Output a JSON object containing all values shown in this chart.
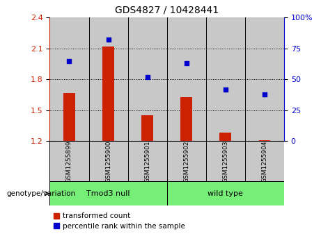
{
  "title": "GDS4827 / 10428441",
  "samples": [
    "GSM1255899",
    "GSM1255900",
    "GSM1255901",
    "GSM1255902",
    "GSM1255903",
    "GSM1255904"
  ],
  "transformed_count": [
    1.67,
    2.12,
    1.45,
    1.63,
    1.28,
    1.21
  ],
  "percentile_rank": [
    65,
    82,
    52,
    63,
    42,
    38
  ],
  "bar_color": "#cc2200",
  "dot_color": "#0000cc",
  "ylim_left": [
    1.2,
    2.4
  ],
  "ylim_right": [
    0,
    100
  ],
  "yticks_left": [
    1.2,
    1.5,
    1.8,
    2.1,
    2.4
  ],
  "yticks_right": [
    0,
    25,
    50,
    75,
    100
  ],
  "ytick_labels_right": [
    "0",
    "25",
    "50",
    "75",
    "100%"
  ],
  "group1_label": "Tmod3 null",
  "group2_label": "wild type",
  "group1_indices": [
    0,
    1,
    2
  ],
  "group2_indices": [
    3,
    4,
    5
  ],
  "group1_color": "#77ee77",
  "group2_color": "#77ee77",
  "genotype_label": "genotype/variation",
  "legend_bar_label": "transformed count",
  "legend_dot_label": "percentile rank within the sample",
  "title_fontsize": 10,
  "tick_fontsize": 8,
  "bar_bottom": 1.2,
  "sample_box_color": "#c8c8c8"
}
